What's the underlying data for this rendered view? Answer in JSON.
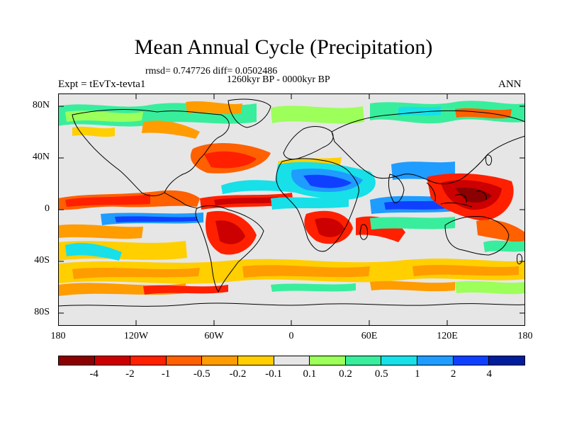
{
  "title": "Mean Annual Cycle (Precipitation)",
  "stats_line": "rmsd= 0.747726 diff= 0.0502486",
  "period": "1260kyr BP - 0000kyr BP",
  "experiment": "Expt = tEvTx-tevta1",
  "season": "ANN",
  "lat_labels": [
    "80N",
    "40N",
    "0",
    "40S",
    "80S"
  ],
  "lon_labels": [
    "180",
    "120W",
    "60W",
    "0",
    "60E",
    "120E",
    "180"
  ],
  "colorbar": {
    "colors": [
      "#8b0000",
      "#cc0000",
      "#ff2000",
      "#ff6000",
      "#ff9c00",
      "#ffcf00",
      "#e6e6e6",
      "#9cff5a",
      "#38ee9c",
      "#17e0e8",
      "#1f9cff",
      "#1040ff",
      "#001e9c"
    ],
    "labels": [
      "-4",
      "-2",
      "-1",
      "-0.5",
      "-0.2",
      "-0.1",
      "0.1",
      "0.2",
      "0.5",
      "1",
      "2",
      "4"
    ]
  }
}
